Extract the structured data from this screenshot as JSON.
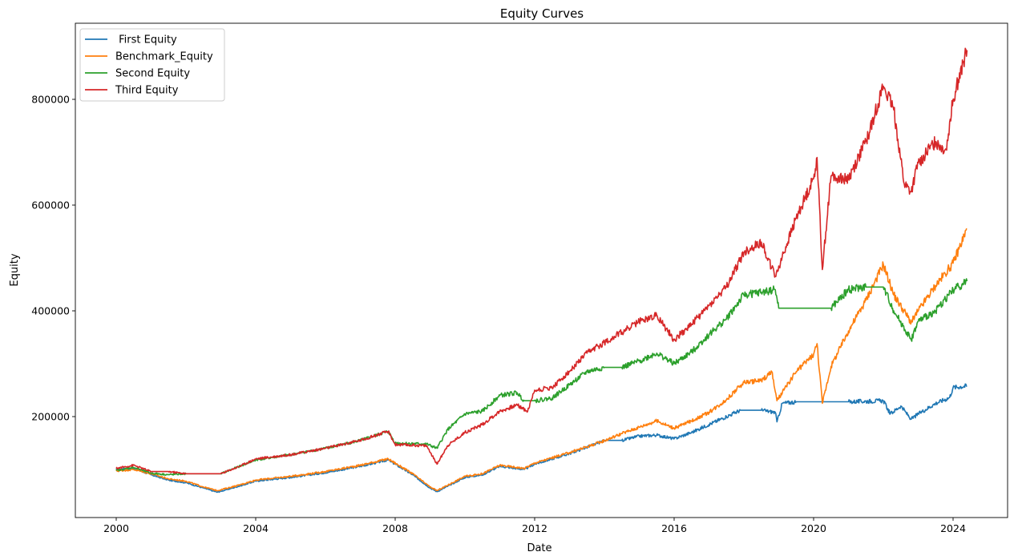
{
  "chart_data": {
    "type": "line",
    "title": "Equity Curves",
    "xlabel": "Date",
    "ylabel": "Equity",
    "xlim": [
      2000,
      2024.4
    ],
    "ylim": [
      60000,
      900000
    ],
    "x_ticks": [
      2000,
      2004,
      2008,
      2012,
      2016,
      2020,
      2024
    ],
    "x_tick_labels": [
      "2000",
      "2004",
      "2008",
      "2012",
      "2016",
      "2020",
      "2024"
    ],
    "y_ticks": [
      200000,
      400000,
      600000,
      800000
    ],
    "y_tick_labels": [
      "200000",
      "400000",
      "600000",
      "800000"
    ],
    "grid": false,
    "legend_position": "top-left",
    "series": [
      {
        "name": " First Equity",
        "color": "#1f77b4",
        "points": [
          [
            2000.0,
            100000
          ],
          [
            2000.5,
            102000
          ],
          [
            2001.0,
            90000
          ],
          [
            2001.5,
            80000
          ],
          [
            2002.0,
            75000
          ],
          [
            2002.5,
            65000
          ],
          [
            2002.9,
            57000
          ],
          [
            2003.5,
            68000
          ],
          [
            2004.0,
            78000
          ],
          [
            2005.0,
            85000
          ],
          [
            2006.0,
            94000
          ],
          [
            2007.0,
            106000
          ],
          [
            2007.8,
            118000
          ],
          [
            2008.5,
            90000
          ],
          [
            2009.0,
            65000
          ],
          [
            2009.2,
            58000
          ],
          [
            2010.0,
            85000
          ],
          [
            2010.5,
            90000
          ],
          [
            2011.0,
            106000
          ],
          [
            2011.7,
            100000
          ],
          [
            2012.0,
            110000
          ],
          [
            2013.0,
            130000
          ],
          [
            2013.9,
            152000
          ],
          [
            2014.0,
            155000
          ],
          [
            2014.5,
            155000
          ],
          [
            2015.0,
            163000
          ],
          [
            2015.5,
            165000
          ],
          [
            2016.0,
            158000
          ],
          [
            2016.5,
            170000
          ],
          [
            2017.0,
            185000
          ],
          [
            2017.5,
            200000
          ],
          [
            2017.9,
            212000
          ],
          [
            2018.5,
            212000
          ],
          [
            2018.9,
            208000
          ],
          [
            2018.95,
            190000
          ],
          [
            2019.1,
            225000
          ],
          [
            2019.5,
            228000
          ],
          [
            2020.0,
            228000
          ],
          [
            2021.0,
            228000
          ],
          [
            2022.0,
            230000
          ],
          [
            2022.2,
            205000
          ],
          [
            2022.5,
            220000
          ],
          [
            2022.8,
            195000
          ],
          [
            2023.0,
            205000
          ],
          [
            2023.5,
            225000
          ],
          [
            2023.9,
            236000
          ],
          [
            2024.0,
            255000
          ],
          [
            2024.4,
            258000
          ]
        ]
      },
      {
        "name": "Benchmark_Equity",
        "color": "#ff7f0e",
        "points": [
          [
            2000.0,
            97000
          ],
          [
            2000.5,
            100000
          ],
          [
            2001.0,
            92000
          ],
          [
            2001.5,
            82000
          ],
          [
            2002.0,
            78000
          ],
          [
            2002.5,
            67000
          ],
          [
            2002.9,
            60000
          ],
          [
            2003.5,
            70000
          ],
          [
            2004.0,
            80000
          ],
          [
            2005.0,
            87000
          ],
          [
            2006.0,
            96000
          ],
          [
            2007.0,
            108000
          ],
          [
            2007.8,
            120000
          ],
          [
            2008.5,
            92000
          ],
          [
            2009.0,
            67000
          ],
          [
            2009.2,
            60000
          ],
          [
            2010.0,
            87000
          ],
          [
            2010.5,
            92000
          ],
          [
            2011.0,
            108000
          ],
          [
            2011.7,
            102000
          ],
          [
            2012.0,
            112000
          ],
          [
            2013.0,
            132000
          ],
          [
            2013.9,
            152000
          ],
          [
            2014.5,
            168000
          ],
          [
            2015.0,
            180000
          ],
          [
            2015.5,
            192000
          ],
          [
            2016.0,
            178000
          ],
          [
            2016.5,
            192000
          ],
          [
            2017.0,
            208000
          ],
          [
            2017.5,
            232000
          ],
          [
            2018.0,
            265000
          ],
          [
            2018.5,
            268000
          ],
          [
            2018.8,
            285000
          ],
          [
            2018.95,
            230000
          ],
          [
            2019.5,
            285000
          ],
          [
            2020.0,
            318000
          ],
          [
            2020.1,
            338000
          ],
          [
            2020.25,
            225000
          ],
          [
            2020.5,
            295000
          ],
          [
            2021.0,
            362000
          ],
          [
            2021.5,
            420000
          ],
          [
            2022.0,
            488000
          ],
          [
            2022.3,
            430000
          ],
          [
            2022.8,
            378000
          ],
          [
            2023.0,
            400000
          ],
          [
            2023.5,
            448000
          ],
          [
            2024.0,
            490000
          ],
          [
            2024.4,
            555000
          ]
        ]
      },
      {
        "name": "Second Equity",
        "color": "#2ca02c",
        "points": [
          [
            2000.0,
            98000
          ],
          [
            2000.5,
            104000
          ],
          [
            2001.0,
            93000
          ],
          [
            2001.5,
            90000
          ],
          [
            2002.0,
            92000
          ],
          [
            2003.0,
            92000
          ],
          [
            2003.5,
            105000
          ],
          [
            2004.0,
            118000
          ],
          [
            2005.0,
            128000
          ],
          [
            2006.0,
            140000
          ],
          [
            2007.0,
            155000
          ],
          [
            2007.8,
            172000
          ],
          [
            2008.0,
            150000
          ],
          [
            2008.9,
            148000
          ],
          [
            2009.2,
            140000
          ],
          [
            2009.5,
            175000
          ],
          [
            2010.0,
            205000
          ],
          [
            2010.5,
            210000
          ],
          [
            2011.0,
            240000
          ],
          [
            2011.5,
            245000
          ],
          [
            2011.7,
            230000
          ],
          [
            2012.0,
            230000
          ],
          [
            2012.5,
            235000
          ],
          [
            2013.0,
            260000
          ],
          [
            2013.5,
            285000
          ],
          [
            2014.0,
            293000
          ],
          [
            2014.5,
            293000
          ],
          [
            2015.0,
            305000
          ],
          [
            2015.5,
            320000
          ],
          [
            2016.0,
            300000
          ],
          [
            2016.5,
            322000
          ],
          [
            2017.0,
            355000
          ],
          [
            2017.5,
            385000
          ],
          [
            2018.0,
            430000
          ],
          [
            2018.5,
            435000
          ],
          [
            2018.9,
            440000
          ],
          [
            2019.0,
            405000
          ],
          [
            2019.5,
            405000
          ],
          [
            2020.0,
            405000
          ],
          [
            2020.5,
            405000
          ],
          [
            2021.0,
            440000
          ],
          [
            2021.5,
            445000
          ],
          [
            2022.0,
            445000
          ],
          [
            2022.3,
            400000
          ],
          [
            2022.8,
            345000
          ],
          [
            2023.0,
            380000
          ],
          [
            2023.5,
            400000
          ],
          [
            2024.0,
            440000
          ],
          [
            2024.4,
            456000
          ]
        ]
      },
      {
        "name": "Third Equity",
        "color": "#d62728",
        "points": [
          [
            2000.0,
            102000
          ],
          [
            2000.5,
            108000
          ],
          [
            2001.0,
            96000
          ],
          [
            2001.5,
            96000
          ],
          [
            2002.0,
            92000
          ],
          [
            2003.0,
            92000
          ],
          [
            2003.5,
            105000
          ],
          [
            2004.0,
            120000
          ],
          [
            2005.0,
            128000
          ],
          [
            2006.0,
            140000
          ],
          [
            2007.0,
            155000
          ],
          [
            2007.8,
            172000
          ],
          [
            2008.0,
            147000
          ],
          [
            2008.9,
            145000
          ],
          [
            2009.2,
            110000
          ],
          [
            2009.5,
            145000
          ],
          [
            2010.0,
            170000
          ],
          [
            2010.5,
            185000
          ],
          [
            2011.0,
            210000
          ],
          [
            2011.5,
            222000
          ],
          [
            2011.8,
            210000
          ],
          [
            2012.0,
            250000
          ],
          [
            2012.5,
            255000
          ],
          [
            2013.0,
            285000
          ],
          [
            2013.5,
            320000
          ],
          [
            2014.0,
            340000
          ],
          [
            2014.5,
            360000
          ],
          [
            2015.0,
            380000
          ],
          [
            2015.5,
            392000
          ],
          [
            2016.0,
            345000
          ],
          [
            2016.5,
            375000
          ],
          [
            2017.0,
            410000
          ],
          [
            2017.5,
            445000
          ],
          [
            2018.0,
            510000
          ],
          [
            2018.5,
            530000
          ],
          [
            2018.9,
            465000
          ],
          [
            2019.5,
            575000
          ],
          [
            2020.0,
            650000
          ],
          [
            2020.1,
            690000
          ],
          [
            2020.25,
            478000
          ],
          [
            2020.5,
            655000
          ],
          [
            2021.0,
            650000
          ],
          [
            2021.5,
            720000
          ],
          [
            2022.0,
            825000
          ],
          [
            2022.3,
            780000
          ],
          [
            2022.6,
            640000
          ],
          [
            2022.8,
            625000
          ],
          [
            2023.0,
            680000
          ],
          [
            2023.5,
            720000
          ],
          [
            2023.8,
            705000
          ],
          [
            2024.0,
            800000
          ],
          [
            2024.4,
            893000
          ]
        ]
      }
    ]
  }
}
